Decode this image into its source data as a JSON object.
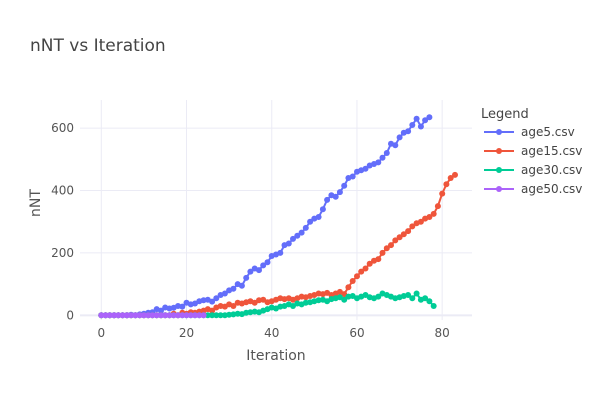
{
  "chart_data": {
    "type": "line",
    "title": "nNT vs Iteration",
    "xlabel": "Iteration",
    "ylabel": "nNT",
    "xlim": [
      -5,
      87
    ],
    "ylim": [
      -15,
      690
    ],
    "xticks": [
      0,
      20,
      40,
      60,
      80
    ],
    "yticks": [
      0,
      200,
      400,
      600
    ],
    "grid": true,
    "legend": {
      "title": "Legend",
      "placement": "top-right"
    },
    "series": [
      {
        "name": "age5.csv",
        "color": "#636efa",
        "x": [
          0,
          1,
          2,
          3,
          4,
          5,
          6,
          7,
          8,
          9,
          10,
          11,
          12,
          13,
          14,
          15,
          16,
          17,
          18,
          19,
          20,
          21,
          22,
          23,
          24,
          25,
          26,
          27,
          28,
          29,
          30,
          31,
          32,
          33,
          34,
          35,
          36,
          37,
          38,
          39,
          40,
          41,
          42,
          43,
          44,
          45,
          46,
          47,
          48,
          49,
          50,
          51,
          52,
          53,
          54,
          55,
          56,
          57,
          58,
          59,
          60,
          61,
          62,
          63,
          64,
          65,
          66,
          67,
          68,
          69,
          70,
          71,
          72,
          73,
          74,
          75,
          76,
          77
        ],
        "y": [
          0,
          0,
          0,
          0,
          0,
          0,
          0,
          2,
          0,
          3,
          5,
          8,
          10,
          20,
          15,
          25,
          22,
          24,
          30,
          28,
          40,
          35,
          38,
          45,
          48,
          50,
          44,
          55,
          65,
          70,
          80,
          85,
          100,
          95,
          120,
          140,
          150,
          145,
          160,
          170,
          190,
          195,
          200,
          225,
          230,
          245,
          255,
          265,
          280,
          300,
          310,
          315,
          340,
          370,
          385,
          380,
          395,
          415,
          440,
          445,
          460,
          465,
          470,
          480,
          485,
          490,
          505,
          520,
          550,
          545,
          570,
          585,
          590,
          610,
          630,
          605,
          625,
          635
        ]
      },
      {
        "name": "age15.csv",
        "color": "#ef553b",
        "x": [
          0,
          1,
          2,
          3,
          4,
          5,
          6,
          7,
          8,
          9,
          10,
          11,
          12,
          13,
          14,
          15,
          16,
          17,
          18,
          19,
          20,
          21,
          22,
          23,
          24,
          25,
          26,
          27,
          28,
          29,
          30,
          31,
          32,
          33,
          34,
          35,
          36,
          37,
          38,
          39,
          40,
          41,
          42,
          43,
          44,
          45,
          46,
          47,
          48,
          49,
          50,
          51,
          52,
          53,
          54,
          55,
          56,
          57,
          58,
          59,
          60,
          61,
          62,
          63,
          64,
          65,
          66,
          67,
          68,
          69,
          70,
          71,
          72,
          73,
          74,
          75,
          76,
          77,
          78,
          79,
          80,
          81,
          82,
          83
        ],
        "y": [
          0,
          0,
          0,
          0,
          0,
          0,
          0,
          0,
          0,
          0,
          0,
          0,
          0,
          0,
          0,
          0,
          0,
          5,
          0,
          8,
          5,
          10,
          8,
          12,
          15,
          20,
          15,
          25,
          30,
          28,
          35,
          30,
          40,
          38,
          42,
          45,
          40,
          48,
          50,
          42,
          45,
          50,
          55,
          52,
          55,
          50,
          55,
          60,
          58,
          62,
          65,
          70,
          68,
          72,
          65,
          70,
          75,
          68,
          90,
          110,
          125,
          140,
          150,
          165,
          175,
          180,
          200,
          215,
          225,
          240,
          250,
          260,
          270,
          285,
          295,
          300,
          310,
          315,
          325,
          350,
          390,
          420,
          440,
          450
        ]
      },
      {
        "name": "age30.csv",
        "color": "#00cc96",
        "x": [
          0,
          1,
          2,
          3,
          4,
          5,
          6,
          7,
          8,
          9,
          10,
          11,
          12,
          13,
          14,
          15,
          16,
          17,
          18,
          19,
          20,
          21,
          22,
          23,
          24,
          25,
          26,
          27,
          28,
          29,
          30,
          31,
          32,
          33,
          34,
          35,
          36,
          37,
          38,
          39,
          40,
          41,
          42,
          43,
          44,
          45,
          46,
          47,
          48,
          49,
          50,
          51,
          52,
          53,
          54,
          55,
          56,
          57,
          58,
          59,
          60,
          61,
          62,
          63,
          64,
          65,
          66,
          67,
          68,
          69,
          70,
          71,
          72,
          73,
          74,
          75,
          76,
          77,
          78
        ],
        "y": [
          0,
          0,
          0,
          0,
          0,
          0,
          0,
          0,
          0,
          0,
          0,
          0,
          0,
          0,
          0,
          0,
          0,
          0,
          0,
          0,
          0,
          0,
          0,
          0,
          0,
          0,
          0,
          0,
          0,
          0,
          2,
          3,
          5,
          4,
          8,
          10,
          12,
          10,
          15,
          20,
          25,
          22,
          28,
          30,
          35,
          30,
          38,
          35,
          40,
          42,
          45,
          48,
          50,
          45,
          52,
          55,
          58,
          50,
          60,
          62,
          55,
          60,
          65,
          58,
          55,
          60,
          70,
          65,
          60,
          55,
          58,
          62,
          65,
          55,
          70,
          50,
          55,
          45,
          30
        ]
      },
      {
        "name": "age50.csv",
        "color": "#ab63fa",
        "x": [
          0,
          1,
          2,
          3,
          4,
          5,
          6,
          7,
          8,
          9,
          10,
          11,
          12,
          13,
          14,
          15,
          16,
          17,
          18,
          19,
          20,
          21,
          22,
          23,
          24
        ],
        "y": [
          0,
          0,
          0,
          0,
          0,
          0,
          0,
          0,
          0,
          0,
          0,
          0,
          0,
          0,
          0,
          0,
          0,
          0,
          0,
          0,
          0,
          0,
          0,
          0,
          0
        ]
      }
    ]
  }
}
